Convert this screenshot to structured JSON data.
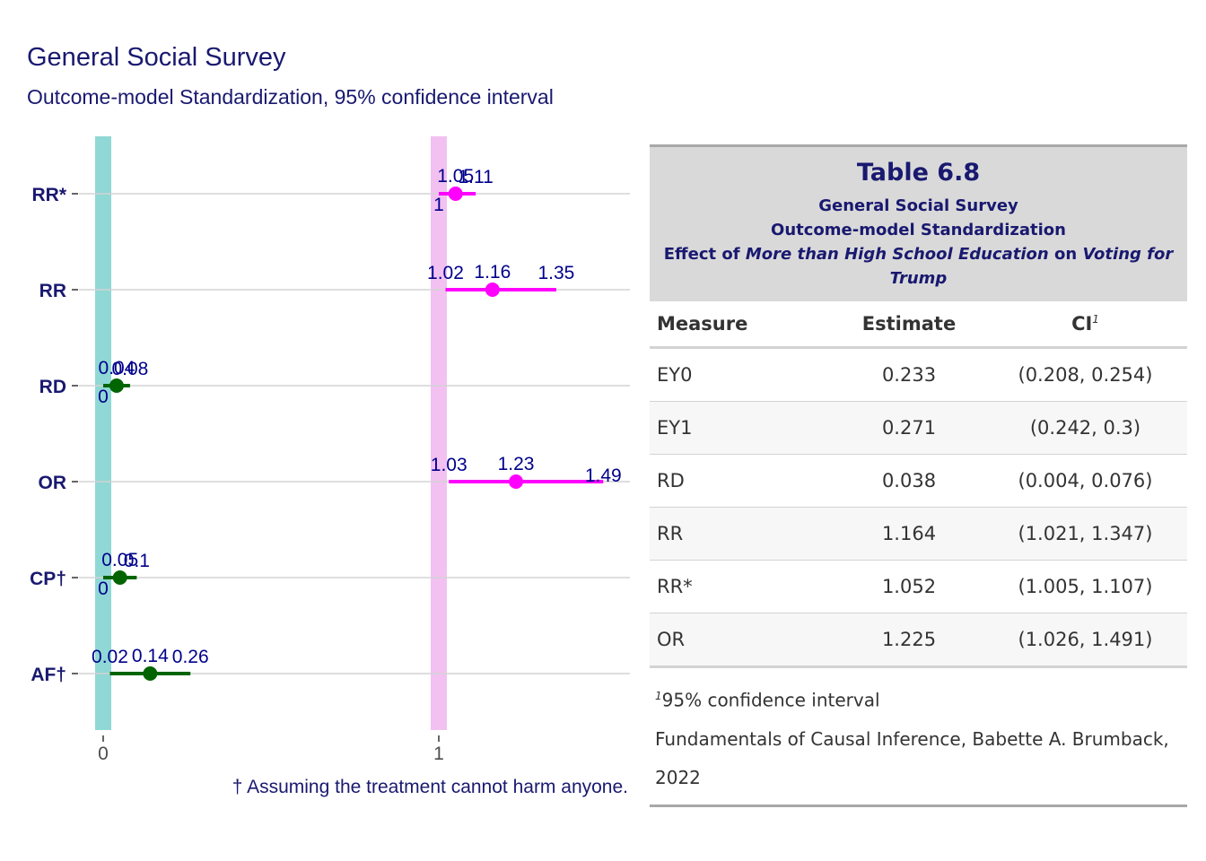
{
  "plot": {
    "title": "General Social Survey",
    "subtitle": "Outcome-model Standardization, 95% confidence interval",
    "caption": "† Assuming the treatment cannot harm anyone."
  },
  "chart_data": {
    "type": "forest",
    "xlim": [
      -0.03,
      1.57
    ],
    "x_ticks": [
      0,
      1
    ],
    "x_tick_labels": [
      "0",
      "1"
    ],
    "reference_lines": [
      {
        "x": 0,
        "color": "#8fd8d5"
      },
      {
        "x": 1,
        "color": "#f2c1f2"
      }
    ],
    "grid": "horizontal",
    "colors": {
      "ratio": "#ff00ff",
      "difference": "#006400",
      "label": "#00008b",
      "axis_text": "#191970"
    },
    "rows": [
      {
        "measure": "RR*",
        "estimate": 1.05,
        "lower": 1.0,
        "upper": 1.11,
        "group": "ratio",
        "labels": {
          "estimate": "1.05",
          "lower": "1",
          "upper": "1.11"
        }
      },
      {
        "measure": "RR",
        "estimate": 1.16,
        "lower": 1.02,
        "upper": 1.35,
        "group": "ratio",
        "labels": {
          "estimate": "1.16",
          "lower": "1.02",
          "upper": "1.35"
        }
      },
      {
        "measure": "RD",
        "estimate": 0.04,
        "lower": 0.0,
        "upper": 0.08,
        "group": "difference",
        "labels": {
          "estimate": "0.04",
          "lower": "0",
          "upper": "0.08"
        }
      },
      {
        "measure": "OR",
        "estimate": 1.23,
        "lower": 1.03,
        "upper": 1.49,
        "group": "ratio",
        "labels": {
          "estimate": "1.23",
          "lower": "1.03",
          "upper": "1.49"
        }
      },
      {
        "measure": "CP†",
        "estimate": 0.05,
        "lower": 0.0,
        "upper": 0.1,
        "group": "difference",
        "labels": {
          "estimate": "0.05",
          "lower": "0",
          "upper": "0.1"
        }
      },
      {
        "measure": "AF†",
        "estimate": 0.14,
        "lower": 0.02,
        "upper": 0.26,
        "group": "difference",
        "labels": {
          "estimate": "0.14",
          "lower": "0.02",
          "upper": "0.26"
        }
      }
    ]
  },
  "table": {
    "title": "Table 6.8",
    "subtitle_line1": "General Social Survey",
    "subtitle_line2": "Outcome-model Standardization",
    "effect_prefix": "Effect of ",
    "effect_treatment": "More than High School Education",
    "effect_mid": " on ",
    "effect_outcome": "Voting for Trump",
    "columns": [
      "Measure",
      "Estimate",
      "CI"
    ],
    "ci_footnote_mark": "1",
    "rows": [
      {
        "measure": "EY0",
        "estimate": "0.233",
        "ci": "(0.208, 0.254)"
      },
      {
        "measure": "EY1",
        "estimate": "0.271",
        "ci": "(0.242, 0.3)"
      },
      {
        "measure": "RD",
        "estimate": "0.038",
        "ci": "(0.004, 0.076)"
      },
      {
        "measure": "RR",
        "estimate": "1.164",
        "ci": "(1.021, 1.347)"
      },
      {
        "measure": "RR*",
        "estimate": "1.052",
        "ci": "(1.005, 1.107)"
      },
      {
        "measure": "OR",
        "estimate": "1.225",
        "ci": "(1.026, 1.491)"
      }
    ],
    "footnote": "95% confidence interval",
    "source": "Fundamentals of Causal Inference, Babette A. Brumback, 2022"
  }
}
